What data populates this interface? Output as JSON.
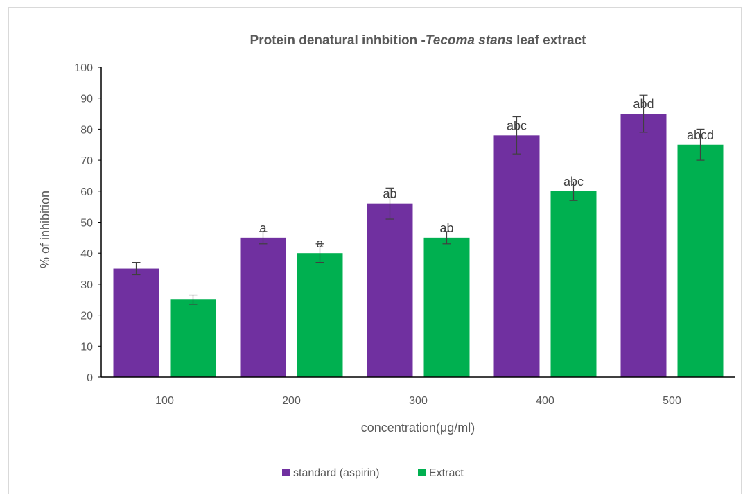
{
  "chart_data": {
    "type": "bar",
    "title_main": "Protein denatural  inhbition -",
    "title_italic": "Tecoma  stans",
    "title_end": " leaf extract",
    "xlabel": "concentration(μg/ml)",
    "ylabel": "% of inhibition",
    "categories": [
      "100",
      "200",
      "300",
      "400",
      "500"
    ],
    "ylim": [
      0,
      100
    ],
    "yticks": [
      0,
      10,
      20,
      30,
      40,
      50,
      60,
      70,
      80,
      90,
      100
    ],
    "legend_position": "bottom",
    "series": [
      {
        "name": "standard (aspirin)",
        "color": "#7030a0",
        "values": [
          35,
          45,
          56,
          78,
          85
        ],
        "error": [
          2,
          2,
          5,
          6,
          6
        ],
        "labels": [
          "",
          "a",
          "ab",
          "abc",
          "abd"
        ]
      },
      {
        "name": "Extract",
        "color": "#00b050",
        "values": [
          25,
          40,
          45,
          60,
          75
        ],
        "error": [
          1.5,
          3,
          2,
          3,
          5
        ],
        "labels": [
          "",
          "a",
          "ab",
          "abc",
          "abcd"
        ]
      }
    ]
  }
}
